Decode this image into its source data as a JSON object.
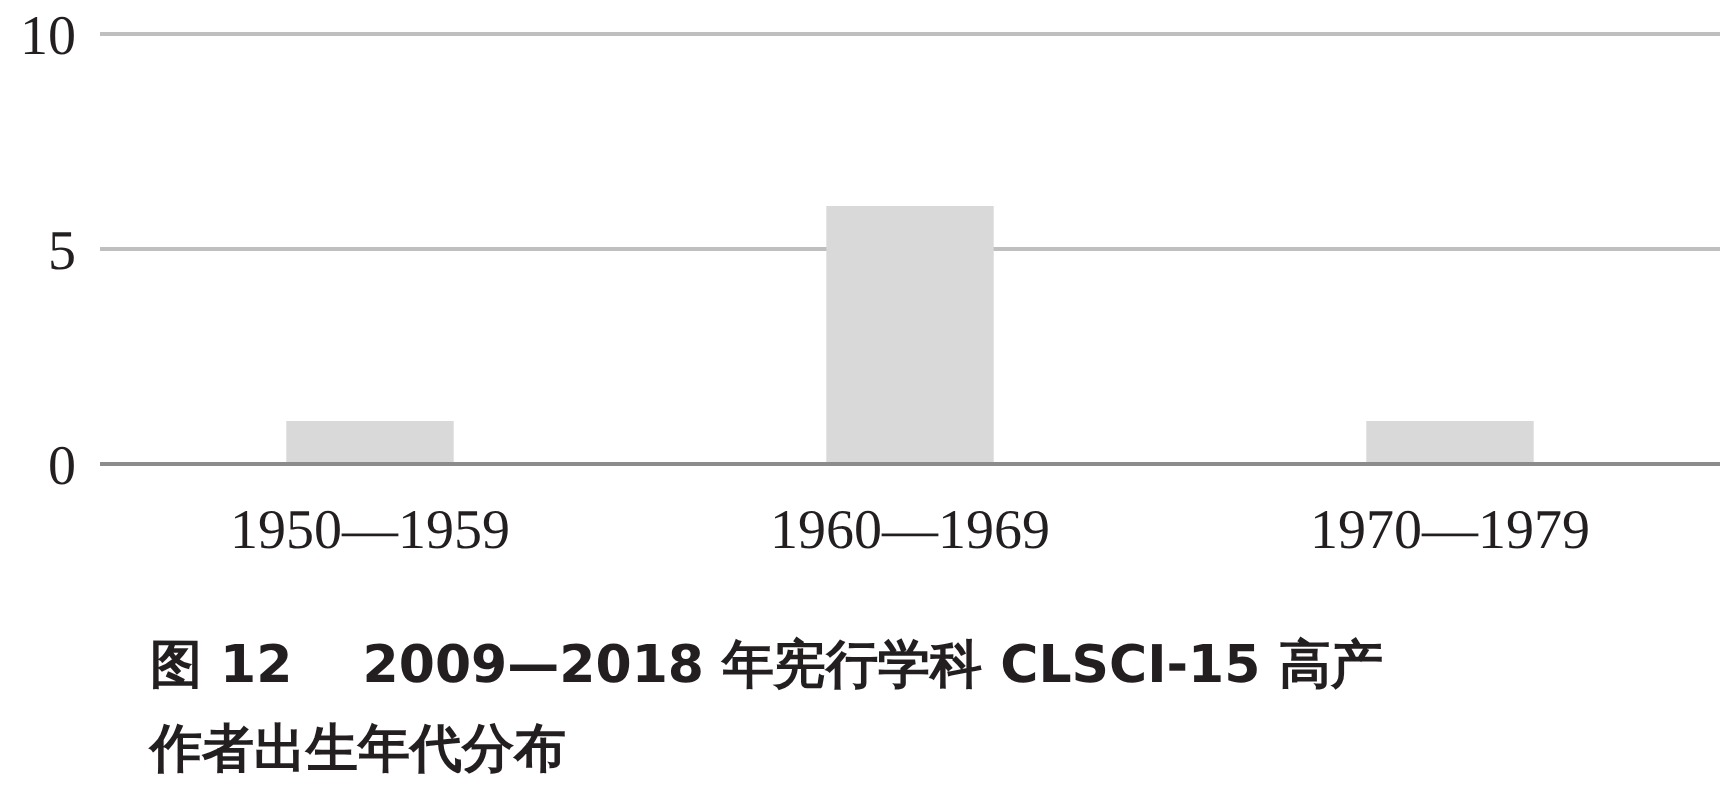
{
  "chart_data": {
    "type": "bar",
    "title": "图 12　 2009—2018 年宪行学科 CLSCI-15 高产作者出生年代分布",
    "categories": [
      "1950—1959",
      "1960—1969",
      "1970—1979"
    ],
    "values": [
      1,
      6,
      1
    ],
    "color": "#d9d9d9",
    "ylim": [
      0,
      10
    ],
    "yticks": [
      0,
      5,
      10
    ],
    "grid": "y"
  }
}
